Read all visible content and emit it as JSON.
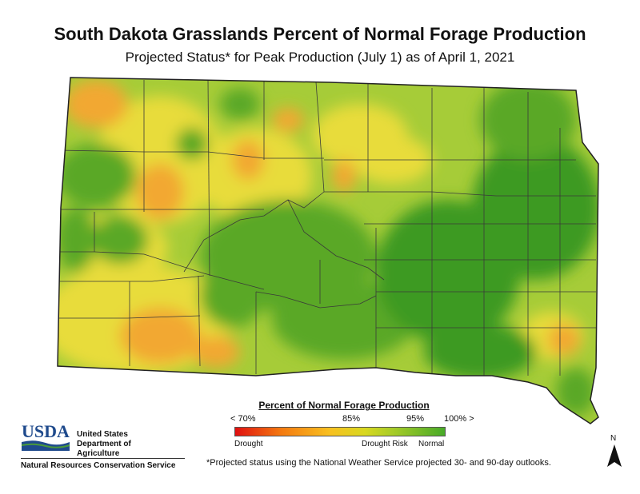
{
  "title": "South Dakota Grasslands Percent of Normal Forage Production",
  "subtitle": "Projected Status* for Peak Production (July 1) as of April 1, 2021",
  "legend": {
    "title": "Percent of Normal Forage Production",
    "ticks": [
      "< 70%",
      "85%",
      "95%",
      "100% >"
    ],
    "labels": [
      "Drought",
      "Drought Risk",
      "Normal"
    ],
    "colors": [
      "#e01010",
      "#f47a10",
      "#f8c020",
      "#d8d820",
      "#48aa28"
    ]
  },
  "agency": {
    "logo_text": "USDA",
    "name_lines": [
      "United States",
      "Department of",
      "Agriculture"
    ],
    "service": "Natural Resources Conservation Service"
  },
  "footnote": "*Projected status using the National Weather Service projected 30- and 90-day outlooks.",
  "north_label": "N",
  "map_colors": {
    "yellow": "#e8dc3a",
    "light_green": "#a6cc38",
    "green": "#5aa828",
    "dark_green": "#3e9a22",
    "orange": "#f2a830",
    "county_line": "#3a3a3a"
  }
}
